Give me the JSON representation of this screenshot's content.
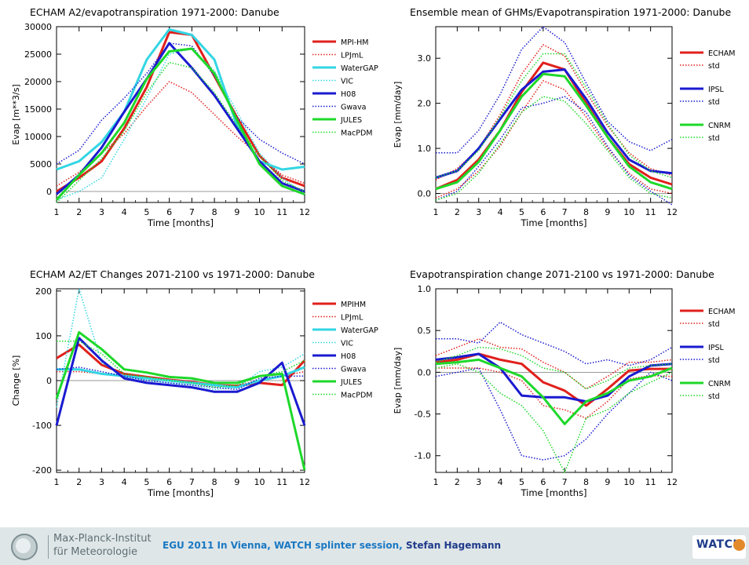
{
  "footer": {
    "institute_line1": "Max-Planck-Institut",
    "institute_line2": "für Meteorologie",
    "event": "EGU 2011 In Vienna, WATCH splinter session,",
    "author": "Stefan Hagemann",
    "logo_text": "WATCH"
  },
  "chart_data": [
    {
      "type": "line",
      "title": "ECHAM A2/evapotranspiration 1971-2000: Danube",
      "xlabel": "Time [months]",
      "ylabel": "Evap [m**3/s]",
      "x": [
        1,
        2,
        3,
        4,
        5,
        6,
        7,
        8,
        9,
        10,
        11,
        12
      ],
      "xlim": [
        1,
        12
      ],
      "ylim": [
        -2000,
        30000
      ],
      "yticks": [
        0,
        5000,
        10000,
        15000,
        20000,
        25000,
        30000
      ],
      "ytick_labels": [
        "0",
        "5000",
        "10000",
        "15000",
        "20000",
        "25000",
        "30000"
      ],
      "zero_line": true,
      "legend_position": "right",
      "series": [
        {
          "name": "MPI-HM",
          "color": "#e0201c",
          "style": "solid",
          "width": 3,
          "values": [
            0,
            2500,
            5500,
            11500,
            19000,
            29000,
            28500,
            21000,
            13500,
            6500,
            2500,
            1000
          ]
        },
        {
          "name": "LPJmL",
          "color": "#e0201c",
          "style": "dotted",
          "width": 1.5,
          "values": [
            1000,
            3500,
            7000,
            10500,
            15500,
            20000,
            18000,
            14000,
            10000,
            6500,
            3000,
            1500
          ]
        },
        {
          "name": "WaterGAP",
          "color": "#33d6e3",
          "style": "solid",
          "width": 3,
          "values": [
            4000,
            5500,
            9000,
            14500,
            24000,
            29500,
            28500,
            24000,
            12000,
            5500,
            4000,
            4500
          ]
        },
        {
          "name": "VIC",
          "color": "#33d6e3",
          "style": "dotted",
          "width": 1.5,
          "values": [
            -1500,
            0,
            2500,
            9500,
            17000,
            25000,
            26000,
            22000,
            14500,
            7000,
            2500,
            -500
          ]
        },
        {
          "name": "H08",
          "color": "#1a1ad0",
          "style": "solid",
          "width": 3,
          "values": [
            -500,
            3000,
            8000,
            14500,
            20500,
            27000,
            22500,
            17500,
            11500,
            5500,
            1500,
            0
          ]
        },
        {
          "name": "Gwava",
          "color": "#1a1ad0",
          "style": "dotted",
          "width": 1.5,
          "values": [
            5000,
            7500,
            13000,
            17000,
            21500,
            27000,
            26500,
            21000,
            13500,
            9500,
            7000,
            5000
          ]
        },
        {
          "name": "JULES",
          "color": "#1ed82a",
          "style": "solid",
          "width": 3,
          "values": [
            -1500,
            3000,
            7000,
            12500,
            20500,
            25500,
            26000,
            21500,
            13000,
            5000,
            1000,
            -500
          ]
        },
        {
          "name": "MacPDM",
          "color": "#1ed82a",
          "style": "dotted",
          "width": 1.5,
          "values": [
            -2000,
            2000,
            6000,
            11000,
            18000,
            23500,
            22500,
            18000,
            12000,
            6500,
            2000,
            0
          ]
        }
      ]
    },
    {
      "type": "line",
      "title": "Ensemble mean of GHMs/Evapotranspiration 1971-2000: Danube",
      "xlabel": "Time [months]",
      "ylabel": "Evap [mm/day]",
      "x": [
        1,
        2,
        3,
        4,
        5,
        6,
        7,
        8,
        9,
        10,
        11,
        12
      ],
      "xlim": [
        1,
        12
      ],
      "ylim": [
        -0.2,
        3.7
      ],
      "yticks": [
        0,
        1,
        2,
        3
      ],
      "ytick_labels": [
        "0.0",
        "1.0",
        "2.0",
        "3.0"
      ],
      "zero_line": true,
      "legend_position": "right",
      "series": [
        {
          "name": "ECHAM",
          "color": "#e0201c",
          "style": "solid",
          "width": 3,
          "values": [
            0.1,
            0.3,
            0.75,
            1.4,
            2.25,
            2.9,
            2.75,
            2.0,
            1.25,
            0.65,
            0.35,
            0.2
          ]
        },
        {
          "name": "std",
          "color": "#e0201c",
          "style": "dotted",
          "width": 1.5,
          "values": [
            0.3,
            0.55,
            1.0,
            1.75,
            2.65,
            3.3,
            3.05,
            2.25,
            1.5,
            0.9,
            0.55,
            0.4
          ]
        },
        {
          "name": "",
          "color": "#e0201c",
          "style": "dotted",
          "width": 1.5,
          "values": [
            -0.1,
            0.1,
            0.5,
            1.05,
            1.8,
            2.5,
            2.3,
            1.7,
            1.0,
            0.45,
            0.1,
            0.0
          ]
        },
        {
          "name": "IPSL",
          "color": "#1a1ad0",
          "style": "solid",
          "width": 3,
          "values": [
            0.35,
            0.5,
            1.0,
            1.65,
            2.3,
            2.7,
            2.75,
            2.1,
            1.35,
            0.75,
            0.5,
            0.45
          ]
        },
        {
          "name": "std",
          "color": "#1a1ad0",
          "style": "dotted",
          "width": 1.5,
          "values": [
            0.9,
            0.9,
            1.4,
            2.2,
            3.2,
            3.7,
            3.35,
            2.45,
            1.6,
            1.15,
            0.95,
            1.2
          ]
        },
        {
          "name": "",
          "color": "#1a1ad0",
          "style": "dotted",
          "width": 1.5,
          "values": [
            -0.15,
            0.05,
            0.6,
            1.2,
            1.9,
            2.0,
            2.15,
            1.8,
            1.05,
            0.4,
            0.05,
            -0.25
          ]
        },
        {
          "name": "CNRM",
          "color": "#1ed82a",
          "style": "solid",
          "width": 3,
          "values": [
            0.1,
            0.25,
            0.7,
            1.4,
            2.15,
            2.65,
            2.6,
            1.95,
            1.25,
            0.6,
            0.25,
            0.1
          ]
        },
        {
          "name": "std",
          "color": "#1ed82a",
          "style": "dotted",
          "width": 1.5,
          "values": [
            -0.15,
            0.0,
            0.45,
            1.1,
            1.8,
            2.15,
            2.05,
            1.55,
            0.95,
            0.35,
            0.0,
            -0.1
          ]
        },
        {
          "name": "",
          "color": "#1ed82a",
          "style": "dotted",
          "width": 1.5,
          "values": [
            0.35,
            0.5,
            0.95,
            1.7,
            2.5,
            3.1,
            3.1,
            2.35,
            1.55,
            0.85,
            0.5,
            0.35
          ]
        }
      ]
    },
    {
      "type": "line",
      "title": "ECHAM A2/ET Changes 2071-2100 vs 1971-2000: Danube",
      "xlabel": "Time [months]",
      "ylabel": "Change [%]",
      "x": [
        1,
        2,
        3,
        4,
        5,
        6,
        7,
        8,
        9,
        10,
        11,
        12
      ],
      "xlim": [
        1,
        12
      ],
      "ylim": [
        -205,
        205
      ],
      "yticks": [
        -200,
        -100,
        0,
        100,
        200
      ],
      "ytick_labels": [
        "-200",
        "-100",
        "0",
        "100",
        "200"
      ],
      "zero_line": true,
      "legend_position": "right",
      "series": [
        {
          "name": "MPIHM",
          "color": "#e0201c",
          "style": "solid",
          "width": 3,
          "values": [
            50,
            80,
            35,
            15,
            8,
            2,
            -3,
            -10,
            -12,
            -5,
            -10,
            45
          ]
        },
        {
          "name": "LPJmL",
          "color": "#e0201c",
          "style": "dotted",
          "width": 1.5,
          "values": [
            20,
            20,
            15,
            10,
            5,
            0,
            -5,
            -10,
            -10,
            0,
            10,
            20
          ]
        },
        {
          "name": "WaterGAP",
          "color": "#33d6e3",
          "style": "solid",
          "width": 3,
          "values": [
            25,
            25,
            15,
            10,
            5,
            0,
            -5,
            -10,
            -15,
            0,
            10,
            30
          ]
        },
        {
          "name": "VIC",
          "color": "#33d6e3",
          "style": "dotted",
          "width": 1.5,
          "values": [
            -60,
            205,
            40,
            10,
            0,
            -5,
            -10,
            -20,
            -15,
            20,
            30,
            60
          ]
        },
        {
          "name": "H08",
          "color": "#1a1ad0",
          "style": "solid",
          "width": 3,
          "values": [
            -100,
            95,
            45,
            5,
            -5,
            -10,
            -15,
            -25,
            -25,
            -5,
            40,
            -100
          ]
        },
        {
          "name": "Gwava",
          "color": "#1a1ad0",
          "style": "dotted",
          "width": 1.5,
          "values": [
            25,
            30,
            20,
            10,
            0,
            -5,
            -10,
            -15,
            -20,
            5,
            10,
            10
          ]
        },
        {
          "name": "JULES",
          "color": "#1ed82a",
          "style": "solid",
          "width": 3,
          "values": [
            -40,
            108,
            70,
            25,
            18,
            8,
            5,
            -5,
            -5,
            10,
            15,
            -200
          ]
        },
        {
          "name": "MacPDM",
          "color": "#1ed82a",
          "style": "dotted",
          "width": 1.5,
          "values": [
            88,
            88,
            60,
            15,
            8,
            0,
            -5,
            -15,
            -10,
            10,
            20,
            45
          ]
        }
      ]
    },
    {
      "type": "line",
      "title": "Evapotranspiration change 2071-2100 vs 1971-2000: Danube",
      "xlabel": "Time [months]",
      "ylabel": "Evap [mm/day]",
      "x": [
        1,
        2,
        3,
        4,
        5,
        6,
        7,
        8,
        9,
        10,
        11,
        12
      ],
      "xlim": [
        1,
        12
      ],
      "ylim": [
        -1.2,
        1.0
      ],
      "yticks": [
        -1,
        -0.5,
        0,
        0.5,
        1
      ],
      "ytick_labels": [
        "-1.0",
        "-0.5",
        "0.0",
        "0.5",
        "1.0"
      ],
      "zero_line": true,
      "legend_position": "right",
      "series": [
        {
          "name": "ECHAM",
          "color": "#e0201c",
          "style": "solid",
          "width": 3,
          "values": [
            0.12,
            0.15,
            0.22,
            0.15,
            0.1,
            -0.12,
            -0.22,
            -0.4,
            -0.2,
            0.02,
            0.04,
            0.04
          ]
        },
        {
          "name": "std",
          "color": "#e0201c",
          "style": "dotted",
          "width": 1.5,
          "values": [
            0.2,
            0.3,
            0.4,
            0.3,
            0.28,
            0.12,
            0.0,
            -0.2,
            -0.05,
            0.12,
            0.12,
            0.15
          ]
        },
        {
          "name": "",
          "color": "#e0201c",
          "style": "dotted",
          "width": 1.5,
          "values": [
            0.05,
            0.05,
            0.05,
            0.0,
            -0.1,
            -0.4,
            -0.45,
            -0.55,
            -0.35,
            -0.08,
            -0.04,
            -0.05
          ]
        },
        {
          "name": "IPSL",
          "color": "#1a1ad0",
          "style": "solid",
          "width": 3,
          "values": [
            0.15,
            0.18,
            0.22,
            0.05,
            -0.28,
            -0.3,
            -0.3,
            -0.35,
            -0.28,
            -0.05,
            0.08,
            0.1
          ]
        },
        {
          "name": "std",
          "color": "#1a1ad0",
          "style": "dotted",
          "width": 1.5,
          "values": [
            0.4,
            0.4,
            0.35,
            0.6,
            0.45,
            0.35,
            0.25,
            0.1,
            0.15,
            0.08,
            0.15,
            0.3
          ]
        },
        {
          "name": "",
          "color": "#1a1ad0",
          "style": "dotted",
          "width": 1.5,
          "values": [
            -0.05,
            0.0,
            0.05,
            -0.45,
            -1.0,
            -1.05,
            -1.0,
            -0.8,
            -0.5,
            -0.25,
            0.0,
            -0.1
          ]
        },
        {
          "name": "CNRM",
          "color": "#1ed82a",
          "style": "solid",
          "width": 3,
          "values": [
            0.1,
            0.12,
            0.15,
            0.05,
            -0.05,
            -0.3,
            -0.62,
            -0.35,
            -0.25,
            -0.1,
            -0.05,
            0.05
          ]
        },
        {
          "name": "std",
          "color": "#1ed82a",
          "style": "dotted",
          "width": 1.5,
          "values": [
            0.05,
            0.1,
            0.0,
            -0.25,
            -0.4,
            -0.7,
            -1.2,
            -0.55,
            -0.45,
            -0.25,
            -0.12,
            0.0
          ]
        },
        {
          "name": "",
          "color": "#1ed82a",
          "style": "dotted",
          "width": 1.5,
          "values": [
            0.12,
            0.2,
            0.3,
            0.28,
            0.2,
            0.05,
            0.0,
            -0.2,
            -0.1,
            0.05,
            0.08,
            0.1
          ]
        }
      ]
    }
  ]
}
